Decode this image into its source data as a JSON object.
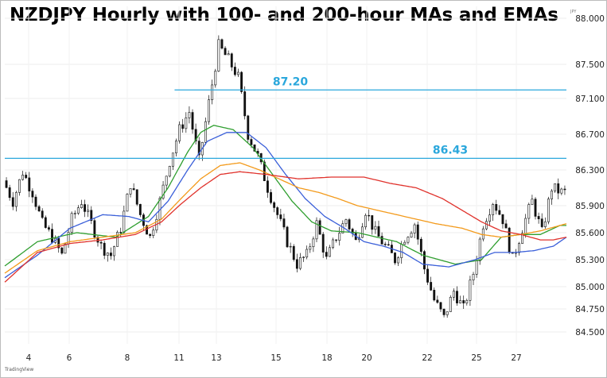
{
  "title": "NZDJPY Hourly with 100- and 200-hour MAs and EMAs",
  "unit_label": "JPY",
  "logo_text": "TradingView",
  "chart_data": {
    "type": "candlestick",
    "timeframe": "hourly",
    "x_tick_labels": [
      "4",
      "6",
      "8",
      "11",
      "13",
      "15",
      "18",
      "20",
      "22",
      "25",
      "27"
    ],
    "y_tick_labels": [
      "88.000",
      "87.500",
      "87.100",
      "86.700",
      "86.300",
      "85.900",
      "85.600",
      "85.300",
      "85.000",
      "84.750",
      "84.500"
    ],
    "ylim": [
      84.35,
      88.05
    ],
    "price_path": [
      [
        0,
        86.18
      ],
      [
        3,
        85.95
      ],
      [
        6,
        86.28
      ],
      [
        9,
        86.05
      ],
      [
        12,
        85.7
      ],
      [
        15,
        85.55
      ],
      [
        18,
        85.35
      ],
      [
        21,
        85.75
      ],
      [
        24,
        85.95
      ],
      [
        27,
        85.7
      ],
      [
        30,
        85.45
      ],
      [
        33,
        85.35
      ],
      [
        36,
        85.65
      ],
      [
        39,
        86.15
      ],
      [
        42,
        85.8
      ],
      [
        45,
        85.55
      ],
      [
        48,
        85.95
      ],
      [
        51,
        86.4
      ],
      [
        54,
        86.75
      ],
      [
        57,
        86.95
      ],
      [
        60,
        86.4
      ],
      [
        63,
        87.05
      ],
      [
        66,
        87.7
      ],
      [
        69,
        87.55
      ],
      [
        72,
        87.35
      ],
      [
        75,
        86.7
      ],
      [
        78,
        86.45
      ],
      [
        81,
        86.1
      ],
      [
        84,
        85.8
      ],
      [
        87,
        85.5
      ],
      [
        90,
        85.25
      ],
      [
        93,
        85.35
      ],
      [
        96,
        85.7
      ],
      [
        99,
        85.3
      ],
      [
        102,
        85.55
      ],
      [
        105,
        85.75
      ],
      [
        108,
        85.5
      ],
      [
        111,
        85.85
      ],
      [
        114,
        85.6
      ],
      [
        117,
        85.45
      ],
      [
        120,
        85.3
      ],
      [
        123,
        85.55
      ],
      [
        126,
        85.7
      ],
      [
        129,
        85.2
      ],
      [
        132,
        84.85
      ],
      [
        135,
        84.65
      ],
      [
        138,
        84.95
      ],
      [
        141,
        84.75
      ],
      [
        144,
        85.15
      ],
      [
        147,
        85.7
      ],
      [
        150,
        85.95
      ],
      [
        153,
        85.75
      ],
      [
        156,
        85.3
      ],
      [
        159,
        85.65
      ],
      [
        162,
        85.95
      ],
      [
        165,
        85.6
      ],
      [
        168,
        86.1
      ],
      [
        171,
        86.05
      ]
    ],
    "series": [
      {
        "values": [
          [
            0,
            85.23
          ],
          [
            10,
            85.5
          ],
          [
            22,
            85.6
          ],
          [
            34,
            85.55
          ],
          [
            44,
            85.78
          ],
          [
            50,
            86.1
          ],
          [
            56,
            86.5
          ],
          [
            60,
            86.72
          ],
          [
            64,
            86.8
          ],
          [
            70,
            86.75
          ],
          [
            76,
            86.55
          ],
          [
            82,
            86.25
          ],
          [
            88,
            85.95
          ],
          [
            94,
            85.72
          ],
          [
            100,
            85.62
          ],
          [
            108,
            85.6
          ],
          [
            114,
            85.55
          ],
          [
            120,
            85.5
          ],
          [
            128,
            85.35
          ],
          [
            138,
            85.25
          ],
          [
            146,
            85.3
          ],
          [
            152,
            85.55
          ],
          [
            158,
            85.58
          ],
          [
            164,
            85.58
          ],
          [
            170,
            85.68
          ]
        ],
        "color": "#2e9e2e"
      },
      {
        "values": [
          [
            0,
            85.1
          ],
          [
            10,
            85.35
          ],
          [
            20,
            85.65
          ],
          [
            30,
            85.8
          ],
          [
            38,
            85.78
          ],
          [
            44,
            85.72
          ],
          [
            50,
            85.95
          ],
          [
            56,
            86.3
          ],
          [
            62,
            86.62
          ],
          [
            68,
            86.72
          ],
          [
            74,
            86.72
          ],
          [
            80,
            86.55
          ],
          [
            86,
            86.25
          ],
          [
            92,
            85.98
          ],
          [
            98,
            85.78
          ],
          [
            104,
            85.65
          ],
          [
            110,
            85.5
          ],
          [
            116,
            85.45
          ],
          [
            122,
            85.38
          ],
          [
            128,
            85.25
          ],
          [
            136,
            85.22
          ],
          [
            144,
            85.3
          ],
          [
            150,
            85.38
          ],
          [
            156,
            85.38
          ],
          [
            162,
            85.4
          ],
          [
            168,
            85.45
          ],
          [
            172,
            85.55
          ]
        ],
        "color": "#3a5fd9"
      },
      {
        "values": [
          [
            0,
            85.15
          ],
          [
            10,
            85.4
          ],
          [
            20,
            85.5
          ],
          [
            30,
            85.55
          ],
          [
            40,
            85.6
          ],
          [
            48,
            85.75
          ],
          [
            54,
            85.98
          ],
          [
            60,
            86.2
          ],
          [
            66,
            86.35
          ],
          [
            72,
            86.38
          ],
          [
            78,
            86.3
          ],
          [
            84,
            86.2
          ],
          [
            90,
            86.1
          ],
          [
            96,
            86.05
          ],
          [
            102,
            85.98
          ],
          [
            108,
            85.9
          ],
          [
            114,
            85.85
          ],
          [
            120,
            85.8
          ],
          [
            126,
            85.75
          ],
          [
            132,
            85.7
          ],
          [
            140,
            85.65
          ],
          [
            146,
            85.58
          ],
          [
            152,
            85.55
          ],
          [
            158,
            85.58
          ],
          [
            164,
            85.62
          ],
          [
            172,
            85.7
          ]
        ],
        "color": "#f39a1b"
      },
      {
        "values": [
          [
            0,
            85.05
          ],
          [
            10,
            85.38
          ],
          [
            20,
            85.48
          ],
          [
            30,
            85.52
          ],
          [
            40,
            85.58
          ],
          [
            48,
            85.72
          ],
          [
            54,
            85.92
          ],
          [
            60,
            86.1
          ],
          [
            66,
            86.25
          ],
          [
            72,
            86.28
          ],
          [
            80,
            86.25
          ],
          [
            90,
            86.2
          ],
          [
            100,
            86.22
          ],
          [
            110,
            86.22
          ],
          [
            118,
            86.15
          ],
          [
            126,
            86.1
          ],
          [
            134,
            85.98
          ],
          [
            140,
            85.85
          ],
          [
            146,
            85.72
          ],
          [
            152,
            85.62
          ],
          [
            158,
            85.58
          ],
          [
            164,
            85.52
          ],
          [
            168,
            85.52
          ],
          [
            172,
            85.55
          ]
        ],
        "color": "#e0322c"
      }
    ],
    "levels": [
      {
        "value": 87.2,
        "label": "87.20",
        "x_start": 52,
        "color": "#2aa7dc"
      },
      {
        "value": 86.43,
        "label": "86.43",
        "x_start": 0,
        "color": "#2aa7dc"
      }
    ],
    "grid": true,
    "legend": false
  }
}
